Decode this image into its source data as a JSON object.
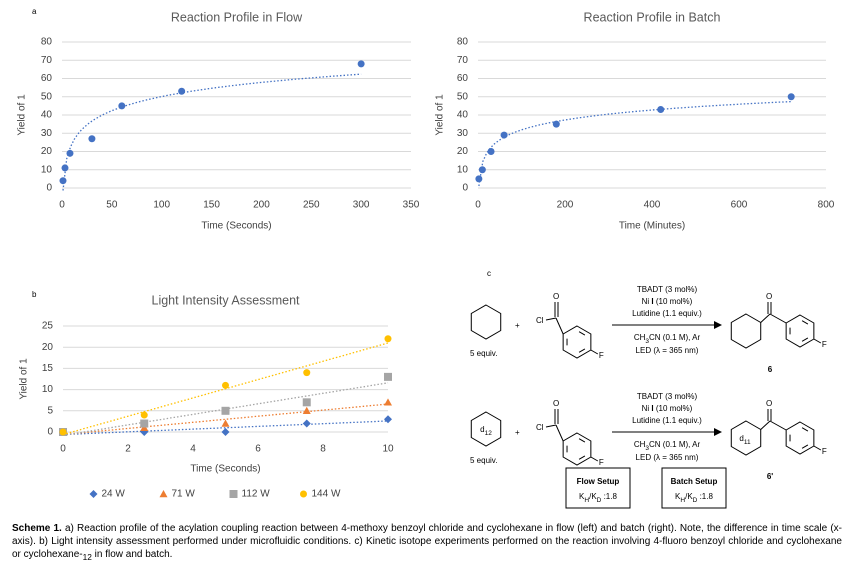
{
  "chart_data": [
    {
      "type": "scatter",
      "label": "a",
      "title": "Reaction Profile in Flow",
      "xlabel": "Time (Seconds)",
      "ylabel": "Yield of 1",
      "x": [
        1,
        3,
        8,
        30,
        60,
        120,
        300
      ],
      "values": [
        4,
        11,
        19,
        27,
        45,
        53,
        68
      ],
      "color": "#4472c4",
      "trendline": "logarithmic",
      "xlim": [
        0,
        350
      ],
      "xticks": [
        0,
        50,
        100,
        150,
        200,
        250,
        300,
        350
      ],
      "ylim": [
        0,
        80
      ],
      "yticks": [
        0,
        10,
        20,
        30,
        40,
        50,
        60,
        70,
        80
      ],
      "grid": true
    },
    {
      "type": "scatter",
      "title": "Reaction Profile in Batch",
      "xlabel": "Time (Minutes)",
      "ylabel": "Yield of 1",
      "x": [
        2,
        10,
        30,
        60,
        180,
        420,
        720
      ],
      "values": [
        5,
        10,
        20,
        29,
        35,
        43,
        50
      ],
      "color": "#4472c4",
      "trendline": "logarithmic",
      "xlim": [
        0,
        800
      ],
      "xticks": [
        0,
        200,
        400,
        600,
        800
      ],
      "ylim": [
        0,
        80
      ],
      "yticks": [
        0,
        10,
        20,
        30,
        40,
        50,
        60,
        70,
        80
      ],
      "grid": true
    },
    {
      "type": "scatter",
      "label": "b",
      "title": "Light Intensity Assessment",
      "xlabel": "Time (Seconds)",
      "ylabel": "Yield of 1",
      "x": [
        0,
        2.5,
        5,
        7.5,
        10
      ],
      "series": [
        {
          "name": "24 W",
          "color": "#4472c4",
          "marker": "diamond",
          "values": [
            0,
            0,
            0,
            2,
            3
          ]
        },
        {
          "name": "71 W",
          "color": "#ed7d31",
          "marker": "triangle",
          "values": [
            0,
            1,
            2,
            5,
            7
          ]
        },
        {
          "name": "112 W",
          "color": "#a5a5a5",
          "marker": "square",
          "values": [
            0,
            2,
            5,
            7,
            13
          ]
        },
        {
          "name": "144 W",
          "color": "#ffc000",
          "marker": "circle",
          "values": [
            0,
            4,
            11,
            14,
            22
          ]
        }
      ],
      "trendline": "linear",
      "xlim": [
        0,
        10
      ],
      "xticks": [
        0,
        2,
        4,
        6,
        8,
        10
      ],
      "ylim": [
        0,
        25
      ],
      "yticks": [
        0,
        5,
        10,
        15,
        20,
        25
      ],
      "grid": true,
      "legend": "bottom"
    }
  ],
  "scheme": {
    "label": "c",
    "reactions": [
      {
        "amount": "5 equiv.",
        "plus": "+",
        "cl": "Cl",
        "f": "F",
        "cond1": "TBADT (3 mol%)",
        "cat": [
          "Ni ",
          "I",
          " (10 mol%)"
        ],
        "base": "Lutidine (1.1 equiv.)",
        "solvent": [
          "CH",
          "3",
          "CN (0.1 M), Ar"
        ],
        "led": "LED (λ = 365 nm)",
        "product_f": "F",
        "product": "6"
      },
      {
        "substrate": [
          "d",
          "12"
        ],
        "amount": "5 equiv.",
        "plus": "+",
        "cl": "Cl",
        "f": "F",
        "cond1": "TBADT (3 mol%)",
        "cat": [
          "Ni ",
          "I",
          " (10 mol%)"
        ],
        "base": "Lutidine (1.1 equiv.)",
        "solvent": [
          "CH",
          "3",
          "CN (0.1 M), Ar"
        ],
        "led": "LED (λ = 365 nm)",
        "product_ring": [
          "d",
          "11"
        ],
        "product_f": "F",
        "product": "6'"
      }
    ],
    "boxes": [
      {
        "title": "Flow Setup",
        "ratio": [
          "K",
          "H",
          "/K",
          "D",
          " :1.8"
        ]
      },
      {
        "title": "Batch Setup",
        "ratio": [
          "K",
          "H",
          "/K",
          "D",
          " :1.8"
        ]
      }
    ]
  },
  "caption": {
    "label": "Scheme 1.",
    "text": " a) Reaction profile of the acylation coupling reaction between 4-methoxy benzoyl chloride and cyclohexane in flow (left) and batch (right). Note, the difference in time scale (x-axis). b) Light intensity assessment performed under microfluidic conditions. c) Kinetic isotope experiments performed on the reaction involving 4-fluoro benzoyl chloride and cyclohexane or cyclohexane-",
    "sub": "12",
    "tail": " in flow and batch."
  }
}
